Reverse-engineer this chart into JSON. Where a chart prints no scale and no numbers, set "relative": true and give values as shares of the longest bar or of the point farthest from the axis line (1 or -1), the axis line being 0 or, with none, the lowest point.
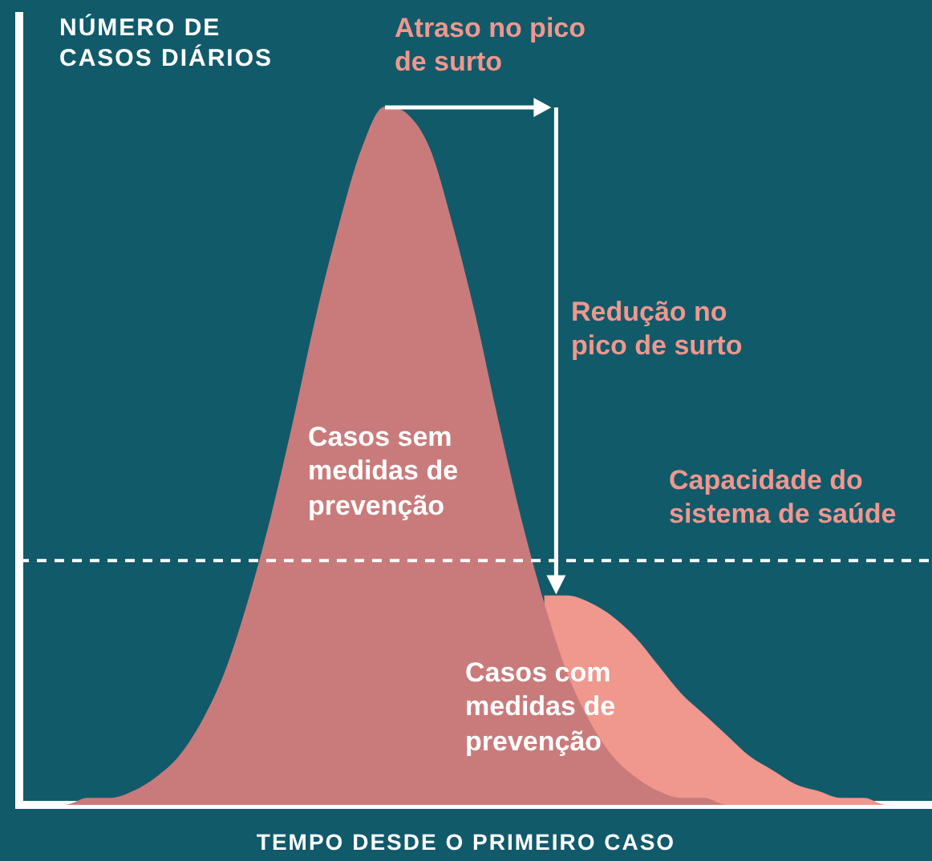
{
  "chart_data": {
    "type": "area",
    "relative": true,
    "ylabel": "NÚMERO DE CASOS DIÁRIOS",
    "xlabel": "TEMPO DESDE O PRIMEIRO CASO",
    "categories": [
      null,
      null,
      null,
      null,
      null,
      null,
      null,
      null,
      null,
      null,
      null,
      null,
      null,
      null,
      null,
      null,
      null,
      null,
      null,
      null,
      null,
      null,
      null,
      null,
      null,
      null,
      null,
      null,
      null,
      null,
      null,
      null,
      null,
      null,
      null,
      null,
      null,
      null,
      null,
      null,
      null
    ],
    "series": [
      {
        "name": "Casos sem medidas de prevenção",
        "color": "#c97b7c",
        "values": [
          0,
          0,
          0,
          0.01,
          0.01,
          0.02,
          0.04,
          0.07,
          0.12,
          0.19,
          0.29,
          0.41,
          0.55,
          0.7,
          0.83,
          0.94,
          1,
          0.99,
          0.94,
          0.83,
          0.7,
          0.55,
          0.41,
          0.29,
          0.19,
          0.12,
          0.07,
          0.04,
          0.02,
          0.01,
          0.01,
          0,
          0,
          0,
          0,
          0,
          0,
          0,
          0,
          0,
          0
        ]
      },
      {
        "name": "Casos com medidas de prevenção",
        "color": "#f0978e",
        "values": [
          null,
          null,
          null,
          null,
          null,
          null,
          null,
          null,
          null,
          null,
          null,
          null,
          null,
          null,
          null,
          null,
          null,
          null,
          null,
          null,
          null,
          null,
          null,
          0.3,
          0.3,
          0.29,
          0.27,
          0.24,
          0.2,
          0.16,
          0.13,
          0.1,
          0.07,
          0.05,
          0.03,
          0.02,
          0.01,
          0.01,
          0,
          0,
          0
        ]
      }
    ],
    "ref_lines": [
      {
        "axis": "y",
        "value": 0.35,
        "label": "Capacidade do sistema de saúde",
        "color": "#ffffff",
        "line_style": "dashed"
      }
    ],
    "annotations": [
      "Atraso no pico de surto",
      "Redução no pico de surto"
    ],
    "legend": false,
    "grid": false,
    "marker": "none"
  }
}
